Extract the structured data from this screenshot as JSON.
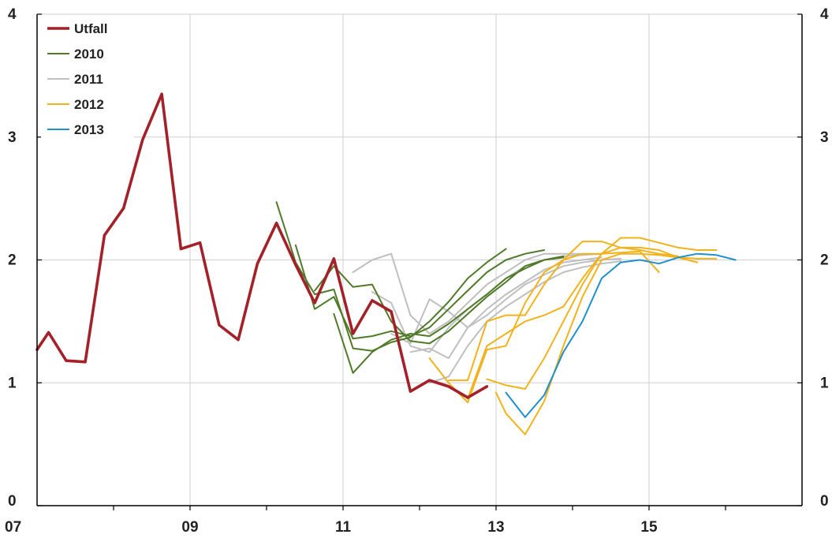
{
  "chart_data": {
    "type": "line",
    "xlabel": "",
    "ylabel": "",
    "ylim": [
      0,
      4
    ],
    "xlim": [
      2007,
      2017
    ],
    "grid": true,
    "legend_position": "top-left",
    "x_ticks": [
      {
        "value": 2007,
        "label": "07"
      },
      {
        "value": 2009,
        "label": "09"
      },
      {
        "value": 2011,
        "label": "11"
      },
      {
        "value": 2013,
        "label": "13"
      },
      {
        "value": 2015,
        "label": "15"
      }
    ],
    "y_ticks": [
      {
        "value": 0,
        "label": "0"
      },
      {
        "value": 1,
        "label": "1"
      },
      {
        "value": 2,
        "label": "2"
      },
      {
        "value": 3,
        "label": "3"
      },
      {
        "value": 4,
        "label": "4"
      }
    ],
    "legend": [
      {
        "label": "Utfall",
        "color": "#A32128"
      },
      {
        "label": "2010",
        "color": "#4F7A28"
      },
      {
        "label": "2011",
        "color": "#BFBFBF"
      },
      {
        "label": "2012",
        "color": "#F2B21B"
      },
      {
        "label": "2013",
        "color": "#1F8FCD"
      }
    ],
    "series": [
      {
        "name": "Utfall",
        "group": "Utfall",
        "x": [
          2007.0,
          2007.15,
          2007.38,
          2007.63,
          2007.88,
          2008.13,
          2008.38,
          2008.63,
          2008.88,
          2009.13,
          2009.38,
          2009.63,
          2009.88,
          2010.13,
          2010.38,
          2010.63,
          2010.88,
          2011.13,
          2011.38,
          2011.63,
          2011.88,
          2012.13,
          2012.38,
          2012.63,
          2012.88
        ],
        "y": [
          1.27,
          1.41,
          1.18,
          1.17,
          2.2,
          2.42,
          2.98,
          3.35,
          2.09,
          2.14,
          1.47,
          1.35,
          1.97,
          2.3,
          1.96,
          1.65,
          2.01,
          1.4,
          1.67,
          1.58,
          0.93,
          1.02,
          0.97,
          0.88,
          0.97
        ]
      },
      {
        "name": "",
        "group": "2010",
        "x": [
          2010.13,
          2010.38,
          2010.63,
          2010.88,
          2011.13,
          2011.38,
          2011.63,
          2011.88,
          2012.13,
          2012.38,
          2012.63,
          2012.88,
          2013.13
        ],
        "y": [
          2.47,
          1.98,
          1.72,
          1.76,
          1.28,
          1.26,
          1.33,
          1.37,
          1.5,
          1.66,
          1.85,
          1.98,
          2.09
        ]
      },
      {
        "name": "",
        "group": "2010",
        "x": [
          2010.38,
          2010.63,
          2010.88,
          2011.13,
          2011.38,
          2011.63,
          2011.88,
          2012.13,
          2012.38,
          2012.63,
          2012.88,
          2013.13,
          2013.38,
          2013.63
        ],
        "y": [
          2.12,
          1.6,
          1.7,
          1.36,
          1.38,
          1.42,
          1.38,
          1.45,
          1.6,
          1.75,
          1.9,
          2.0,
          2.05,
          2.08
        ]
      },
      {
        "name": "",
        "group": "2010",
        "x": [
          2010.63,
          2010.88,
          2011.13,
          2011.38,
          2011.63,
          2011.88,
          2012.13,
          2012.38,
          2012.63,
          2012.88,
          2013.13,
          2013.38,
          2013.63,
          2013.88
        ],
        "y": [
          1.75,
          1.95,
          1.78,
          1.8,
          1.5,
          1.34,
          1.32,
          1.42,
          1.56,
          1.7,
          1.82,
          1.95,
          2.0,
          2.02
        ]
      },
      {
        "name": "",
        "group": "2010",
        "x": [
          2010.88,
          2011.13,
          2011.38,
          2011.63,
          2011.88,
          2012.13,
          2012.38,
          2012.63,
          2012.88,
          2013.13,
          2013.38,
          2013.63,
          2013.88
        ],
        "y": [
          1.56,
          1.08,
          1.25,
          1.35,
          1.4,
          1.38,
          1.48,
          1.6,
          1.72,
          1.85,
          1.93,
          2.0,
          2.03
        ]
      },
      {
        "name": "",
        "group": "2011",
        "x": [
          2011.13,
          2011.38,
          2011.63,
          2011.88,
          2012.13,
          2012.38,
          2012.63,
          2012.88,
          2013.13,
          2013.38,
          2013.63,
          2013.88,
          2014.13
        ],
        "y": [
          1.9,
          2.0,
          2.05,
          1.55,
          1.4,
          1.5,
          1.65,
          1.8,
          1.9,
          2.0,
          2.05,
          2.05,
          2.05
        ]
      },
      {
        "name": "",
        "group": "2011",
        "x": [
          2011.38,
          2011.63,
          2011.88,
          2012.13,
          2012.38,
          2012.63,
          2012.88,
          2013.13,
          2013.38,
          2013.63,
          2013.88,
          2014.13,
          2014.38
        ],
        "y": [
          1.74,
          1.65,
          1.3,
          1.25,
          1.45,
          1.6,
          1.72,
          1.85,
          1.95,
          2.0,
          2.03,
          2.04,
          2.05
        ]
      },
      {
        "name": "",
        "group": "2011",
        "x": [
          2011.63,
          2011.88,
          2012.13,
          2012.38,
          2012.63,
          2012.88,
          2013.13,
          2013.38,
          2013.63,
          2013.88,
          2014.13,
          2014.38
        ],
        "y": [
          1.4,
          1.32,
          1.68,
          1.58,
          1.45,
          1.6,
          1.72,
          1.82,
          1.92,
          1.98,
          2.0,
          2.02
        ]
      },
      {
        "name": "",
        "group": "2011",
        "x": [
          2011.88,
          2012.13,
          2012.38,
          2012.63,
          2012.88,
          2013.13,
          2013.38,
          2013.63,
          2013.88,
          2014.13,
          2014.38,
          2014.63
        ],
        "y": [
          1.25,
          1.28,
          1.2,
          1.45,
          1.55,
          1.68,
          1.8,
          1.88,
          1.95,
          1.98,
          2.0,
          2.01
        ]
      },
      {
        "name": "",
        "group": "2011",
        "x": [
          2012.13,
          2012.38,
          2012.63,
          2012.88,
          2013.13,
          2013.38,
          2013.63,
          2013.88,
          2014.13,
          2014.38,
          2014.63
        ],
        "y": [
          1.0,
          1.05,
          1.3,
          1.5,
          1.62,
          1.72,
          1.82,
          1.9,
          1.94,
          1.97,
          1.99
        ]
      },
      {
        "name": "",
        "group": "2012",
        "x": [
          2012.13,
          2012.38,
          2012.63,
          2012.88,
          2013.13,
          2013.38,
          2013.63,
          2013.88,
          2014.13,
          2014.38,
          2014.63,
          2014.88,
          2015.13
        ],
        "y": [
          1.2,
          1.0,
          0.84,
          1.27,
          1.3,
          1.65,
          1.9,
          2.0,
          2.05,
          2.05,
          2.06,
          2.07,
          1.9
        ]
      },
      {
        "name": "",
        "group": "2012",
        "x": [
          2012.38,
          2012.63,
          2012.88,
          2013.13,
          2013.38,
          2013.63,
          2013.88,
          2014.13,
          2014.38,
          2014.63,
          2014.88,
          2015.13,
          2015.38
        ],
        "y": [
          1.02,
          1.02,
          1.5,
          1.55,
          1.55,
          1.8,
          2.0,
          2.15,
          2.15,
          2.1,
          2.08,
          2.05,
          2.03
        ]
      },
      {
        "name": "",
        "group": "2012",
        "x": [
          2012.63,
          2012.88,
          2013.13,
          2013.38,
          2013.63,
          2013.88,
          2014.13,
          2014.38,
          2014.63,
          2014.88,
          2015.13,
          2015.38,
          2015.63
        ],
        "y": [
          0.87,
          1.3,
          1.4,
          1.5,
          1.55,
          1.62,
          1.85,
          2.05,
          2.1,
          2.1,
          2.08,
          2.02,
          1.98
        ]
      },
      {
        "name": "",
        "group": "2012",
        "x": [
          2012.88,
          2013.13,
          2013.38,
          2013.63,
          2013.88,
          2014.13,
          2014.38,
          2014.63,
          2014.88,
          2015.13,
          2015.38,
          2015.63,
          2015.88
        ],
        "y": [
          1.03,
          0.98,
          0.95,
          1.2,
          1.5,
          1.8,
          2.05,
          2.18,
          2.18,
          2.14,
          2.1,
          2.08,
          2.08
        ]
      },
      {
        "name": "",
        "group": "2012",
        "x": [
          2013.0,
          2013.13,
          2013.38,
          2013.63,
          2013.88,
          2014.13,
          2014.38,
          2014.63,
          2014.88,
          2015.13,
          2015.38,
          2015.63,
          2015.88
        ],
        "y": [
          0.92,
          0.75,
          0.58,
          0.85,
          1.3,
          1.7,
          2.0,
          2.05,
          2.05,
          2.04,
          2.02,
          2.01,
          2.01
        ]
      },
      {
        "name": "",
        "group": "2013",
        "x": [
          2013.13,
          2013.38,
          2013.63,
          2013.88,
          2014.13,
          2014.38,
          2014.63,
          2014.88,
          2015.13,
          2015.38,
          2015.63,
          2015.88,
          2016.13
        ],
        "y": [
          0.92,
          0.72,
          0.9,
          1.25,
          1.5,
          1.85,
          1.98,
          2.0,
          1.97,
          2.02,
          2.05,
          2.04,
          2.0
        ]
      }
    ]
  }
}
